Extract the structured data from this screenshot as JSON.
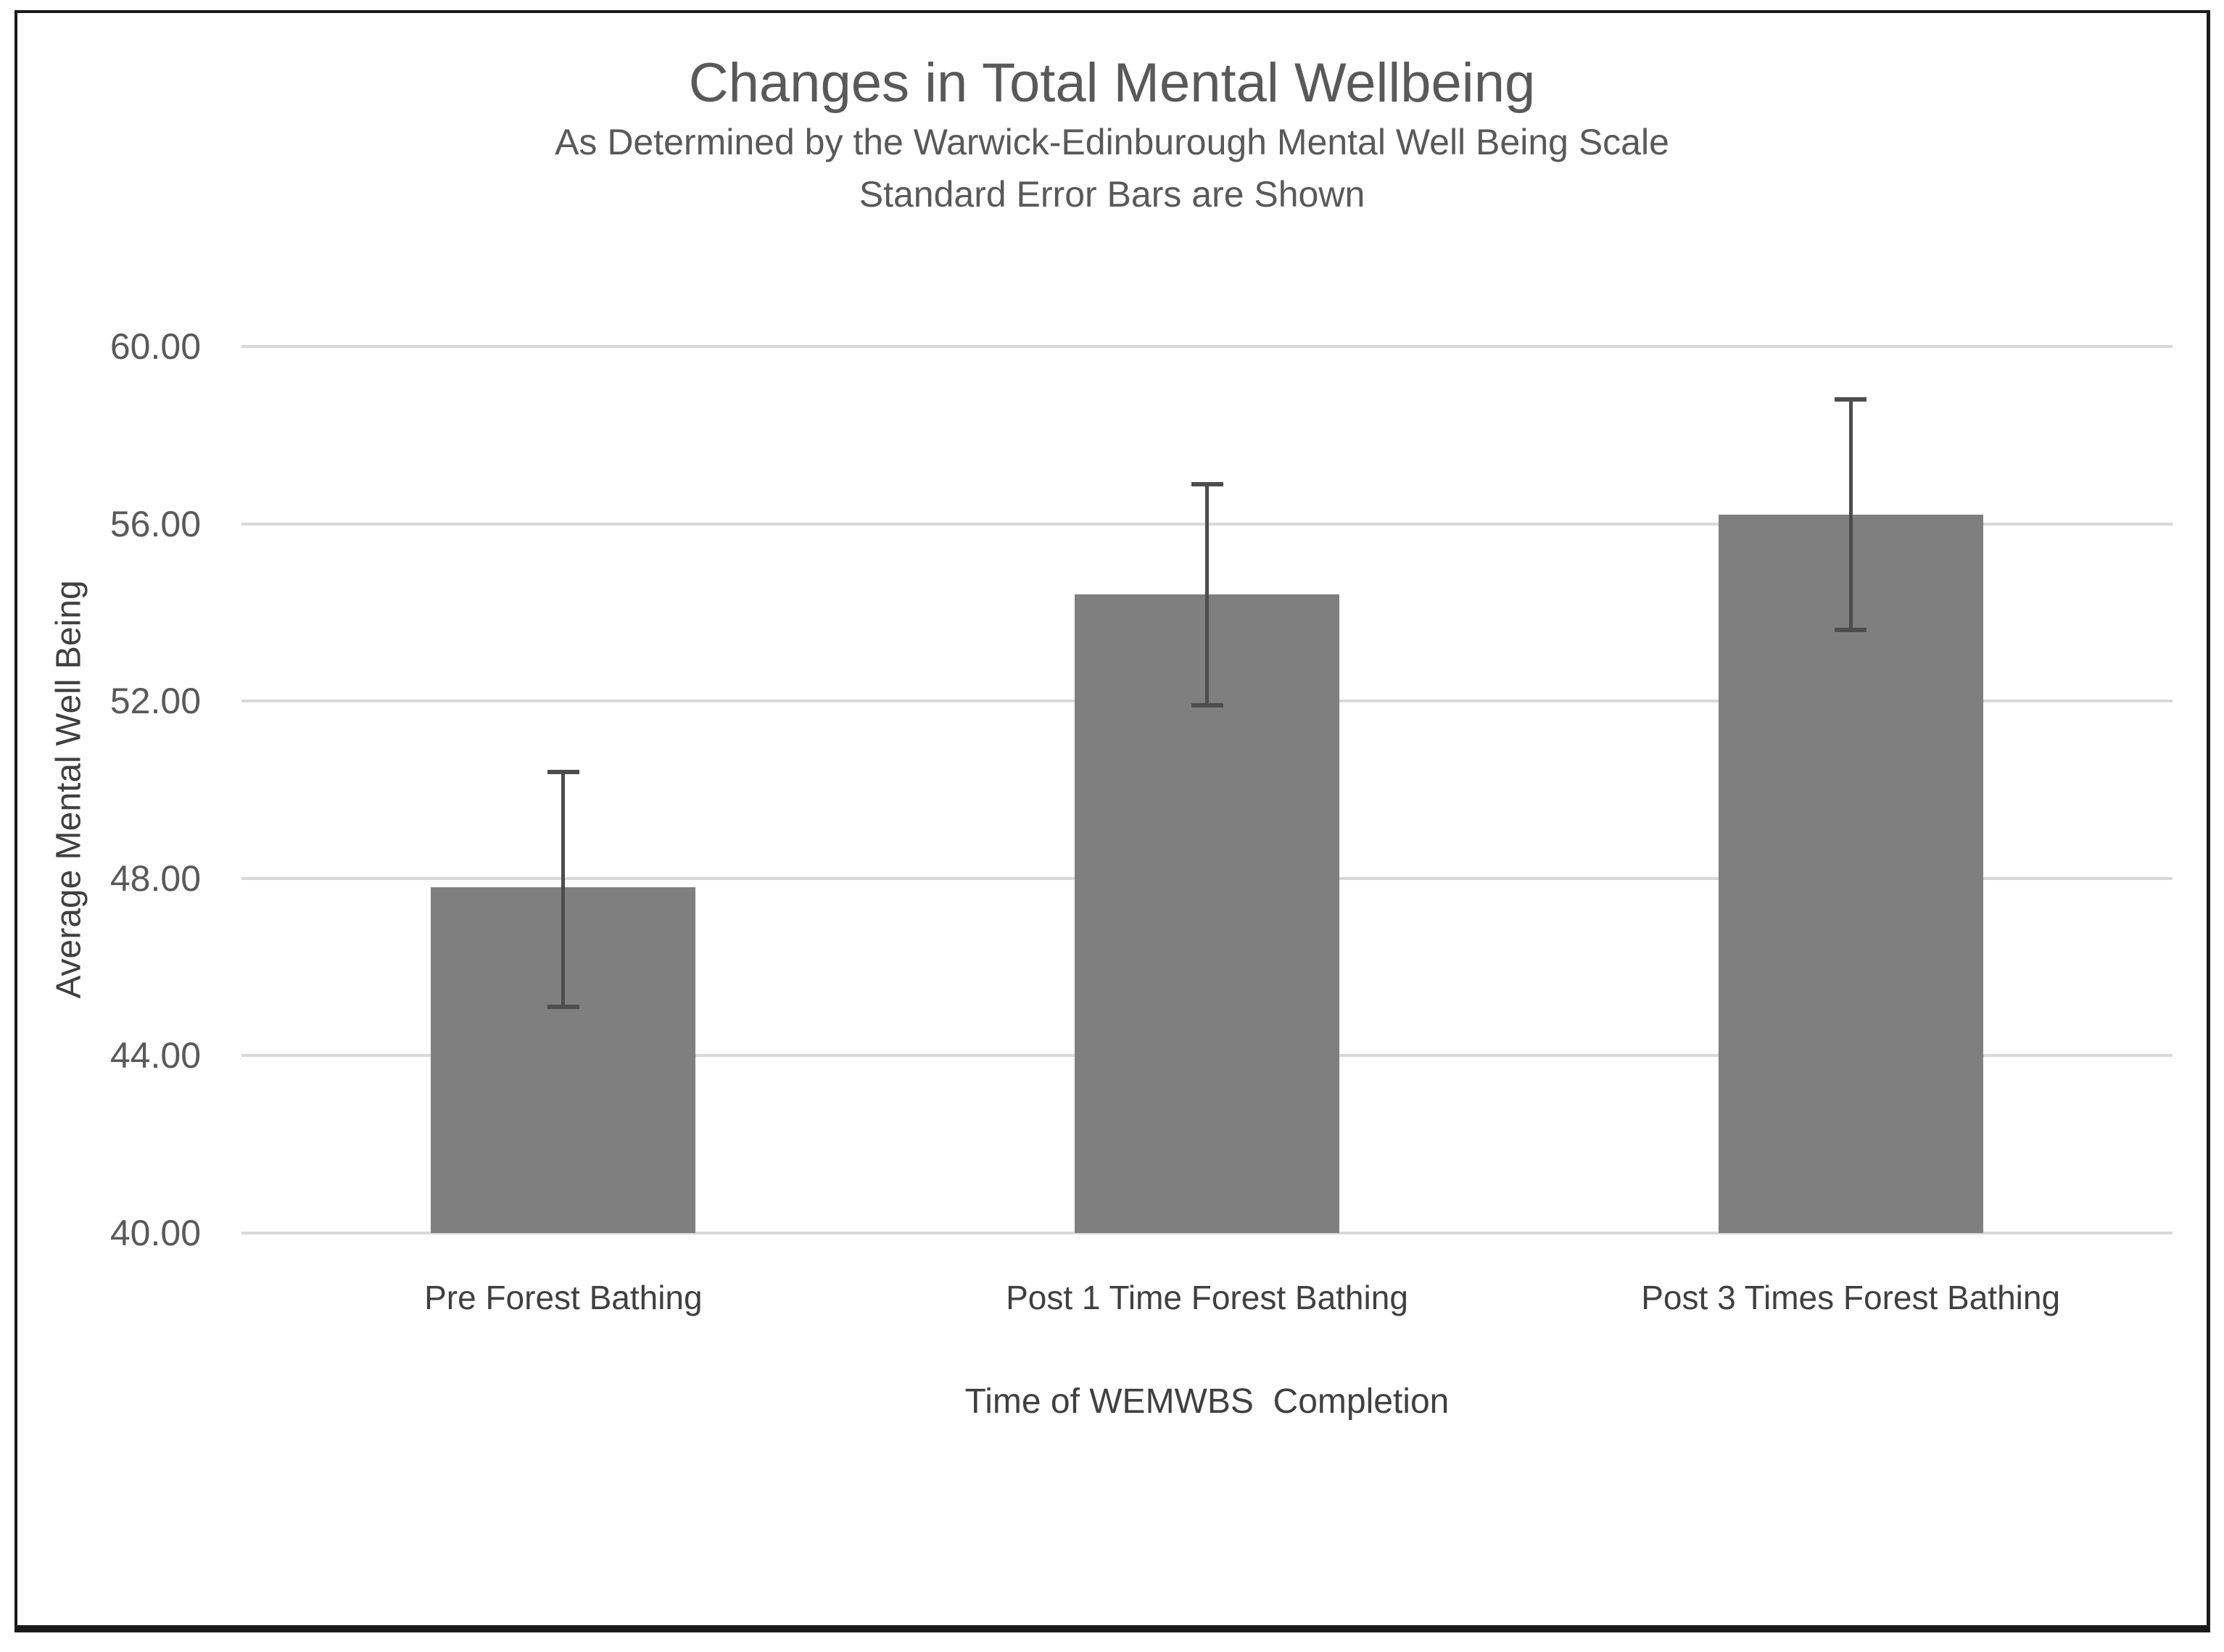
{
  "window": {
    "background": "#ffffff",
    "frame_border_color": "#1a1a1a"
  },
  "chart_data": {
    "type": "bar",
    "title": "Changes in Total Mental Wellbeing",
    "subtitle_line1": "As Determined by the Warwick-Edinburough Mental Well Being Scale",
    "subtitle_line2": "Standard Error Bars are Shown",
    "xlabel": "Time of WEMWBS  Completion",
    "ylabel": "Average Mental Well Being",
    "categories": [
      "Pre Forest Bathing",
      "Post 1 Time Forest Bathing",
      "Post 3 Times Forest Bathing"
    ],
    "values": [
      47.8,
      54.4,
      56.2
    ],
    "error_upper": [
      50.4,
      56.9,
      58.8
    ],
    "error_lower": [
      45.1,
      51.9,
      53.6
    ],
    "ylim": [
      40,
      60
    ],
    "ytick_step": 4,
    "ytick_labels": [
      "60.00",
      "56.00",
      "52.00",
      "48.00",
      "44.00",
      "40.00"
    ],
    "grid": true,
    "legend_position": "none",
    "colors": {
      "bar": "#7f7f7f",
      "error_bar": "#4d4d4d",
      "gridline": "#d9d9d9",
      "title_text": "#595959",
      "axis_text": "#595959",
      "category_text": "#404040"
    }
  }
}
